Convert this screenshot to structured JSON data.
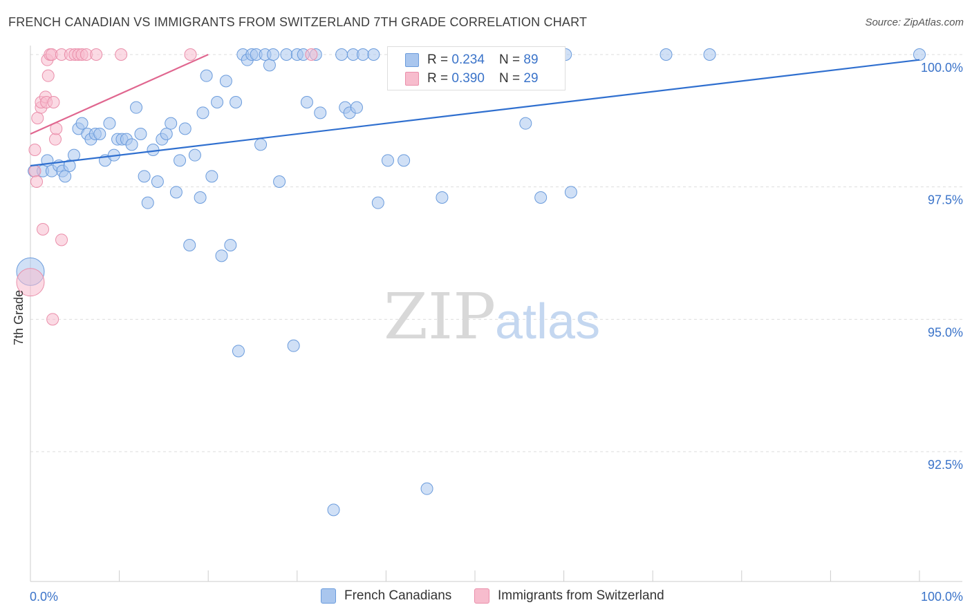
{
  "title": "FRENCH CANADIAN VS IMMIGRANTS FROM SWITZERLAND 7TH GRADE CORRELATION CHART",
  "source": "Source: ZipAtlas.com",
  "watermark": {
    "zip": "ZIP",
    "atlas": "atlas"
  },
  "legend": {
    "row1": {
      "r_label": "R = ",
      "r_value": "0.234",
      "n_label": "N = ",
      "n_value": "89"
    },
    "row2": {
      "r_label": "R = ",
      "r_value": "0.390",
      "n_label": "N = ",
      "n_value": "29"
    }
  },
  "bottom_legend": {
    "series1": "French Canadians",
    "series2": "Immigrants from Switzerland"
  },
  "colors": {
    "blue_fill": "#a9c6ee",
    "blue_stroke": "#6a9bdc",
    "blue_line": "#2f6fcf",
    "pink_fill": "#f7bccd",
    "pink_stroke": "#ea8eaa",
    "pink_line": "#e0668f",
    "axis_text": "#3a73c9",
    "grid": "#dddddd"
  },
  "chart_data": {
    "type": "scatter",
    "title": "FRENCH CANADIAN VS IMMIGRANTS FROM SWITZERLAND 7TH GRADE CORRELATION CHART",
    "xlabel": "",
    "ylabel": "7th Grade",
    "xlim": [
      0,
      100
    ],
    "ylim": [
      90.0,
      100.25
    ],
    "x_tick_labels": [
      "0.0%",
      "100.0%"
    ],
    "y_ticks": [
      {
        "value": 100.0,
        "label": "100.0%"
      },
      {
        "value": 97.5,
        "label": "97.5%"
      },
      {
        "value": 95.0,
        "label": "95.0%"
      },
      {
        "value": 92.5,
        "label": "92.5%"
      }
    ],
    "series": [
      {
        "name": "French Canadians",
        "color": "#6a9bdc",
        "R": 0.234,
        "N": 89,
        "trend": {
          "x": [
            0,
            100
          ],
          "y": [
            97.9,
            99.9
          ]
        },
        "points": [
          {
            "x": 0.0,
            "y": 95.9,
            "big": true
          },
          {
            "x": 0.4,
            "y": 97.8
          },
          {
            "x": 1.4,
            "y": 97.8
          },
          {
            "x": 1.9,
            "y": 98.0
          },
          {
            "x": 2.4,
            "y": 97.8
          },
          {
            "x": 3.2,
            "y": 97.9
          },
          {
            "x": 3.6,
            "y": 97.8
          },
          {
            "x": 3.9,
            "y": 97.7
          },
          {
            "x": 4.4,
            "y": 97.9
          },
          {
            "x": 4.9,
            "y": 98.1
          },
          {
            "x": 5.4,
            "y": 98.6
          },
          {
            "x": 5.8,
            "y": 98.7
          },
          {
            "x": 6.4,
            "y": 98.5
          },
          {
            "x": 6.8,
            "y": 98.4
          },
          {
            "x": 7.3,
            "y": 98.5
          },
          {
            "x": 7.8,
            "y": 98.5
          },
          {
            "x": 8.4,
            "y": 98.0
          },
          {
            "x": 8.9,
            "y": 98.7
          },
          {
            "x": 9.4,
            "y": 98.1
          },
          {
            "x": 9.8,
            "y": 98.4
          },
          {
            "x": 10.3,
            "y": 98.4
          },
          {
            "x": 10.8,
            "y": 98.4
          },
          {
            "x": 11.4,
            "y": 98.3
          },
          {
            "x": 11.9,
            "y": 99.0
          },
          {
            "x": 12.4,
            "y": 98.5
          },
          {
            "x": 12.8,
            "y": 97.7
          },
          {
            "x": 13.2,
            "y": 97.2
          },
          {
            "x": 13.8,
            "y": 98.2
          },
          {
            "x": 14.3,
            "y": 97.6
          },
          {
            "x": 14.8,
            "y": 98.4
          },
          {
            "x": 15.3,
            "y": 98.5
          },
          {
            "x": 15.8,
            "y": 98.7
          },
          {
            "x": 16.4,
            "y": 97.4
          },
          {
            "x": 16.8,
            "y": 98.0
          },
          {
            "x": 17.4,
            "y": 98.6
          },
          {
            "x": 17.9,
            "y": 96.4
          },
          {
            "x": 18.5,
            "y": 98.1
          },
          {
            "x": 19.1,
            "y": 97.3
          },
          {
            "x": 19.4,
            "y": 98.9
          },
          {
            "x": 19.8,
            "y": 99.6
          },
          {
            "x": 20.4,
            "y": 97.7
          },
          {
            "x": 21.0,
            "y": 99.1
          },
          {
            "x": 21.5,
            "y": 96.2
          },
          {
            "x": 22.0,
            "y": 99.5
          },
          {
            "x": 22.5,
            "y": 96.4
          },
          {
            "x": 23.1,
            "y": 99.1
          },
          {
            "x": 23.4,
            "y": 94.4
          },
          {
            "x": 23.9,
            "y": 100.0
          },
          {
            "x": 24.4,
            "y": 99.9
          },
          {
            "x": 24.9,
            "y": 100.0
          },
          {
            "x": 25.4,
            "y": 100.0
          },
          {
            "x": 25.9,
            "y": 98.3
          },
          {
            "x": 26.4,
            "y": 100.0
          },
          {
            "x": 26.9,
            "y": 99.8
          },
          {
            "x": 27.3,
            "y": 100.0
          },
          {
            "x": 28.0,
            "y": 97.6
          },
          {
            "x": 28.8,
            "y": 100.0
          },
          {
            "x": 29.6,
            "y": 94.5
          },
          {
            "x": 30.0,
            "y": 100.0
          },
          {
            "x": 30.7,
            "y": 100.0
          },
          {
            "x": 31.1,
            "y": 99.1
          },
          {
            "x": 32.1,
            "y": 100.0
          },
          {
            "x": 32.6,
            "y": 98.9
          },
          {
            "x": 34.1,
            "y": 91.4
          },
          {
            "x": 35.0,
            "y": 100.0
          },
          {
            "x": 35.4,
            "y": 99.0
          },
          {
            "x": 35.9,
            "y": 98.9
          },
          {
            "x": 36.3,
            "y": 100.0
          },
          {
            "x": 36.7,
            "y": 99.0
          },
          {
            "x": 37.4,
            "y": 100.0
          },
          {
            "x": 38.6,
            "y": 100.0
          },
          {
            "x": 39.1,
            "y": 97.2
          },
          {
            "x": 40.2,
            "y": 98.0
          },
          {
            "x": 42.0,
            "y": 98.0
          },
          {
            "x": 44.6,
            "y": 91.8
          },
          {
            "x": 46.3,
            "y": 97.3
          },
          {
            "x": 47.9,
            "y": 100.0
          },
          {
            "x": 50.6,
            "y": 100.0
          },
          {
            "x": 55.4,
            "y": 100.0
          },
          {
            "x": 55.7,
            "y": 98.7
          },
          {
            "x": 57.4,
            "y": 97.3
          },
          {
            "x": 60.2,
            "y": 100.0
          },
          {
            "x": 60.8,
            "y": 97.4
          },
          {
            "x": 71.5,
            "y": 100.0
          },
          {
            "x": 76.4,
            "y": 100.0
          },
          {
            "x": 100.0,
            "y": 100.0
          }
        ]
      },
      {
        "name": "Immigrants from Switzerland",
        "color": "#ea8eaa",
        "R": 0.39,
        "N": 29,
        "trend": {
          "x": [
            0,
            20
          ],
          "y": [
            98.5,
            100.0
          ]
        },
        "points": [
          {
            "x": 0.0,
            "y": 95.7,
            "big": true
          },
          {
            "x": 0.5,
            "y": 98.2
          },
          {
            "x": 0.5,
            "y": 97.8
          },
          {
            "x": 0.7,
            "y": 97.6
          },
          {
            "x": 0.8,
            "y": 98.8
          },
          {
            "x": 1.2,
            "y": 99.0
          },
          {
            "x": 1.2,
            "y": 99.1
          },
          {
            "x": 1.4,
            "y": 96.7
          },
          {
            "x": 1.7,
            "y": 99.2
          },
          {
            "x": 1.8,
            "y": 99.1
          },
          {
            "x": 1.9,
            "y": 99.9
          },
          {
            "x": 2.0,
            "y": 99.6
          },
          {
            "x": 2.2,
            "y": 100.0
          },
          {
            "x": 2.4,
            "y": 100.0
          },
          {
            "x": 2.5,
            "y": 95.0
          },
          {
            "x": 2.6,
            "y": 99.1
          },
          {
            "x": 2.8,
            "y": 98.4
          },
          {
            "x": 2.9,
            "y": 98.6
          },
          {
            "x": 3.5,
            "y": 96.5
          },
          {
            "x": 3.5,
            "y": 100.0
          },
          {
            "x": 4.5,
            "y": 100.0
          },
          {
            "x": 5.0,
            "y": 100.0
          },
          {
            "x": 5.4,
            "y": 100.0
          },
          {
            "x": 5.8,
            "y": 100.0
          },
          {
            "x": 6.3,
            "y": 100.0
          },
          {
            "x": 7.4,
            "y": 100.0
          },
          {
            "x": 10.2,
            "y": 100.0
          },
          {
            "x": 18.0,
            "y": 100.0
          },
          {
            "x": 31.6,
            "y": 100.0
          }
        ]
      }
    ]
  }
}
